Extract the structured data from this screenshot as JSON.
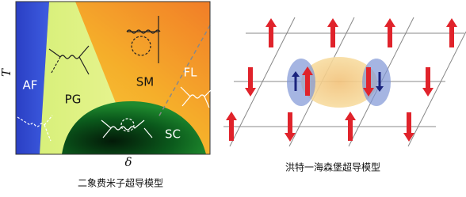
{
  "left_panel": {
    "axis_y": "T",
    "axis_x": "δ",
    "regions": {
      "af": "AF",
      "pg": "PG",
      "sm": "SM",
      "fl": "FL",
      "sc": "SC"
    },
    "caption": "二象费米子超导模型"
  },
  "right_panel": {
    "caption": "洪特一海森堡超导模型"
  }
}
